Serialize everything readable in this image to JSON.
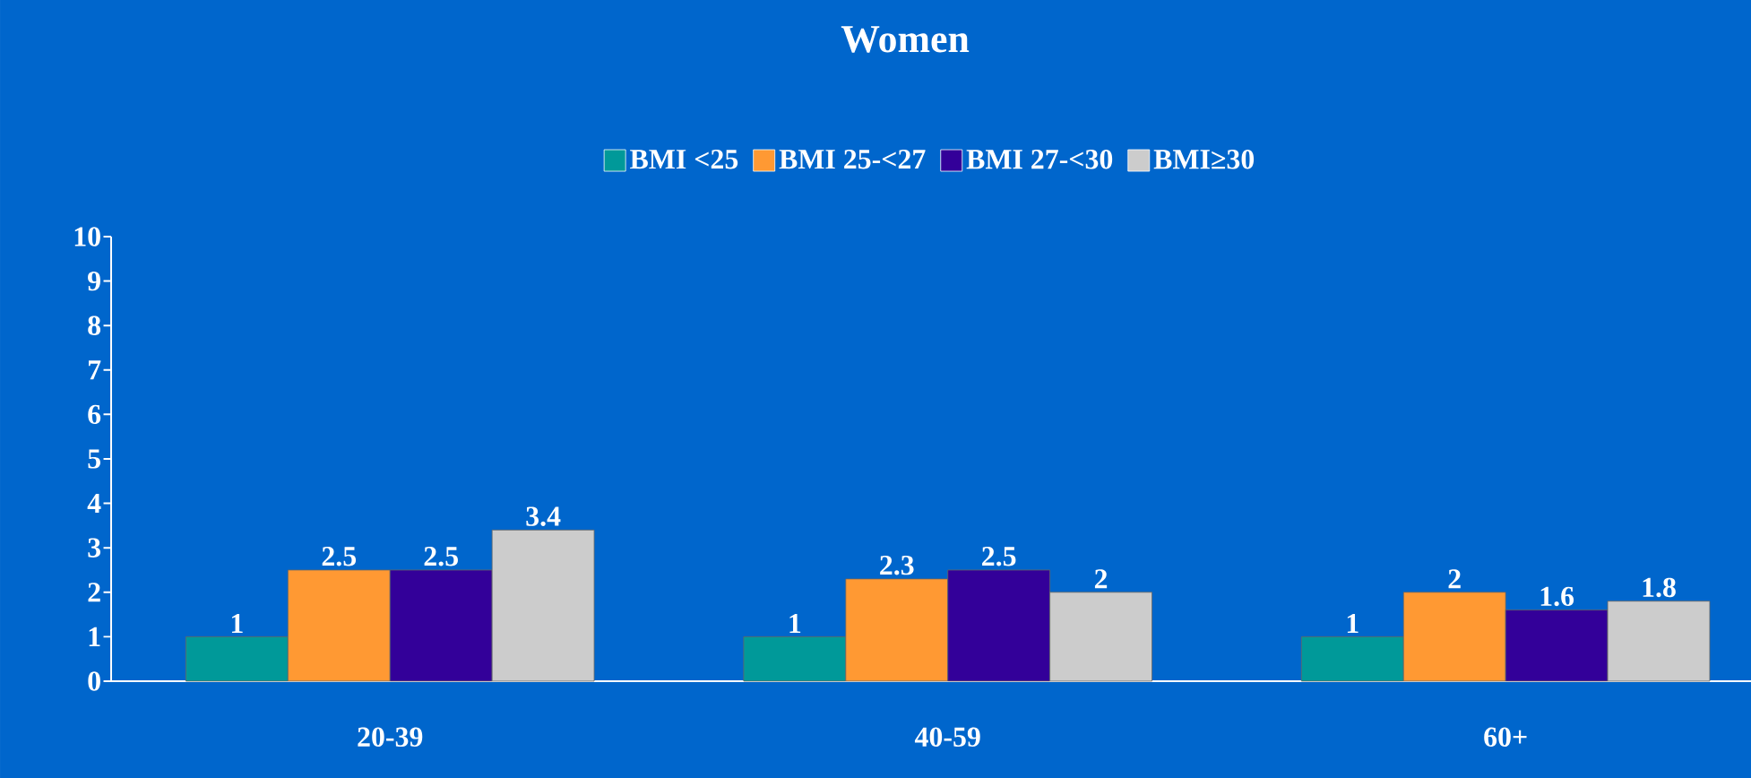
{
  "chart_data": {
    "type": "bar",
    "title": "Women",
    "categories": [
      "20-39",
      "40-59",
      "60+"
    ],
    "series": [
      {
        "name": "BMI <25",
        "color": "#009999",
        "values": [
          1,
          1,
          1
        ]
      },
      {
        "name": "BMI 25-<27",
        "color": "#ff9933",
        "values": [
          2.5,
          2.3,
          2
        ]
      },
      {
        "name": "BMI 27-<30",
        "color": "#330099",
        "values": [
          2.5,
          2.5,
          1.6
        ]
      },
      {
        "name": "BMI≥30",
        "color": "#cccccc",
        "values": [
          3.4,
          2,
          1.8
        ]
      }
    ],
    "ylim": [
      0,
      10
    ],
    "yticks": [
      0,
      1,
      2,
      3,
      4,
      5,
      6,
      7,
      8,
      9,
      10
    ],
    "data_labels": true,
    "legend": "top",
    "grid": false
  }
}
